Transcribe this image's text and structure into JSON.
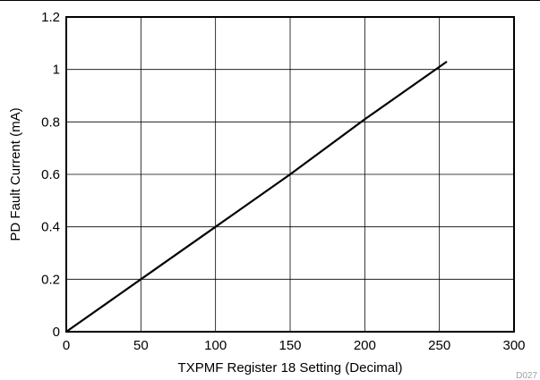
{
  "chart_data": {
    "type": "line",
    "title": "",
    "xlabel": "TXPMF Register 18 Setting (Decimal)",
    "ylabel": "PD Fault Current (mA)",
    "xlim": [
      0,
      300
    ],
    "ylim": [
      0,
      1.2
    ],
    "xticks": [
      "0",
      "50",
      "100",
      "150",
      "200",
      "250",
      "300"
    ],
    "yticks": [
      "0",
      "0.2",
      "0.4",
      "0.6",
      "0.8",
      "1",
      "1.2"
    ],
    "grid": true,
    "legend": "none",
    "series": [
      {
        "x": [
          0,
          50,
          100,
          150,
          200,
          255
        ],
        "y": [
          0,
          0.2,
          0.4,
          0.6,
          0.81,
          1.03
        ]
      }
    ],
    "figure_id": "D027",
    "colors": {
      "line": "#000000",
      "grid": "#000000",
      "frame": "#000000",
      "figure_id": "#a0a0a0"
    }
  }
}
